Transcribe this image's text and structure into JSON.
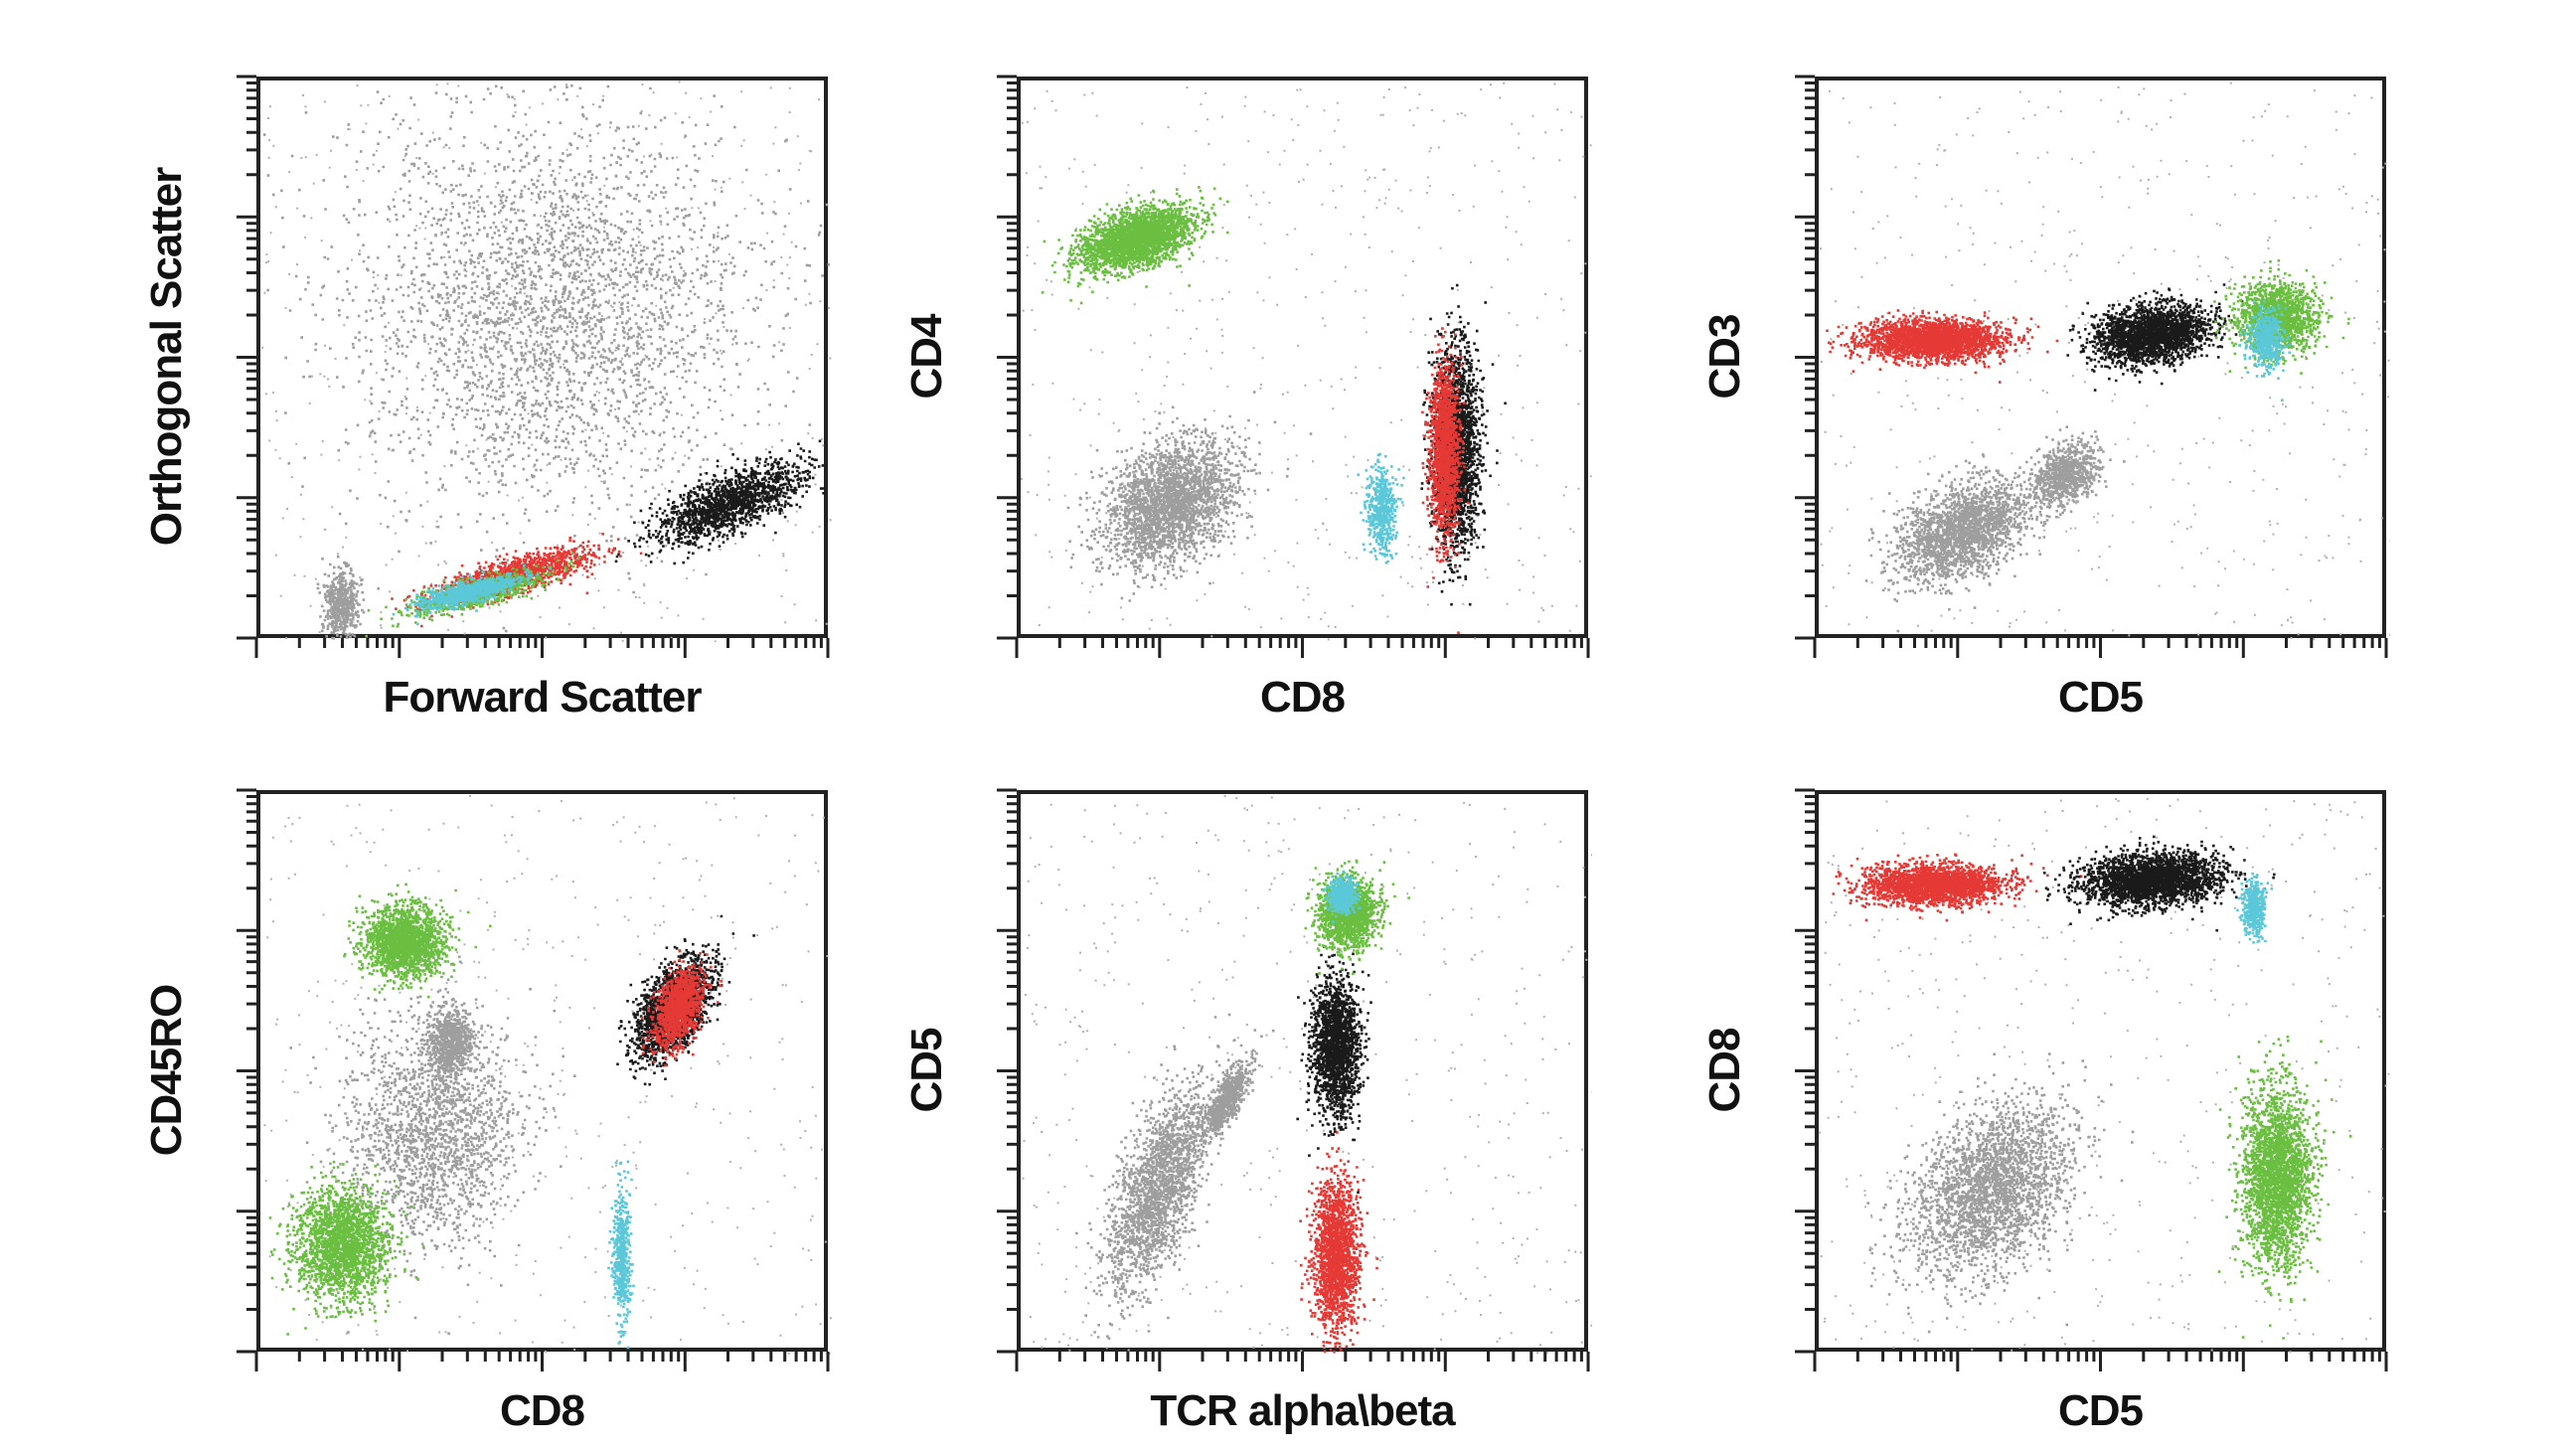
{
  "chart_data": [
    {
      "type": "scatter",
      "title": "",
      "xlabel": "Forward Scatter",
      "ylabel": "Orthogonal Scatter",
      "xlim": [
        0,
        1
      ],
      "ylim": [
        0,
        1
      ],
      "populations": [
        {
          "name": "gray",
          "color": "#9e9e9e",
          "center": [
            0.5,
            0.6
          ],
          "spread": [
            0.35,
            0.35
          ],
          "n": 3000,
          "angle": 0
        },
        {
          "name": "gray-low",
          "color": "#9e9e9e",
          "center": [
            0.14,
            0.07
          ],
          "spread": [
            0.03,
            0.06
          ],
          "n": 500,
          "angle": 0
        },
        {
          "name": "black",
          "color": "#1a1a1a",
          "center": [
            0.82,
            0.25
          ],
          "spread": [
            0.14,
            0.05
          ],
          "n": 1500,
          "angle": 0.35
        },
        {
          "name": "red",
          "color": "#e53935",
          "center": [
            0.44,
            0.12
          ],
          "spread": [
            0.14,
            0.03
          ],
          "n": 1200,
          "angle": 0.25
        },
        {
          "name": "green",
          "color": "#6abf40",
          "center": [
            0.38,
            0.09
          ],
          "spread": [
            0.12,
            0.025
          ],
          "n": 800,
          "angle": 0.25
        },
        {
          "name": "cyan",
          "color": "#5bc8d9",
          "center": [
            0.36,
            0.09
          ],
          "spread": [
            0.09,
            0.02
          ],
          "n": 700,
          "angle": 0.22
        }
      ]
    },
    {
      "type": "scatter",
      "title": "",
      "xlabel": "CD8",
      "ylabel": "CD4",
      "xlim": [
        0,
        1
      ],
      "ylim": [
        0,
        1
      ],
      "populations": [
        {
          "name": "gray",
          "color": "#9e9e9e",
          "center": [
            0.26,
            0.25
          ],
          "spread": [
            0.12,
            0.1
          ],
          "n": 2500,
          "angle": 0.3
        },
        {
          "name": "green",
          "color": "#6abf40",
          "center": [
            0.2,
            0.72
          ],
          "spread": [
            0.1,
            0.05
          ],
          "n": 2500,
          "angle": 0.25
        },
        {
          "name": "black",
          "color": "#1a1a1a",
          "center": [
            0.76,
            0.35
          ],
          "spread": [
            0.04,
            0.17
          ],
          "n": 2200,
          "angle": 0
        },
        {
          "name": "red",
          "color": "#e53935",
          "center": [
            0.74,
            0.34
          ],
          "spread": [
            0.025,
            0.15
          ],
          "n": 1500,
          "angle": 0
        },
        {
          "name": "cyan",
          "color": "#5bc8d9",
          "center": [
            0.63,
            0.24
          ],
          "spread": [
            0.025,
            0.08
          ],
          "n": 500,
          "angle": 0
        }
      ]
    },
    {
      "type": "scatter",
      "title": "",
      "xlabel": "CD5",
      "ylabel": "CD3",
      "xlim": [
        0,
        1
      ],
      "ylim": [
        0,
        1
      ],
      "populations": [
        {
          "name": "gray",
          "color": "#9e9e9e",
          "center": [
            0.25,
            0.2
          ],
          "spread": [
            0.12,
            0.08
          ],
          "n": 2000,
          "angle": 0.3
        },
        {
          "name": "gray-b",
          "color": "#9e9e9e",
          "center": [
            0.43,
            0.3
          ],
          "spread": [
            0.06,
            0.05
          ],
          "n": 800,
          "angle": 0.3
        },
        {
          "name": "red",
          "color": "#e53935",
          "center": [
            0.2,
            0.54
          ],
          "spread": [
            0.12,
            0.035
          ],
          "n": 2500,
          "angle": 0
        },
        {
          "name": "black",
          "color": "#1a1a1a",
          "center": [
            0.58,
            0.55
          ],
          "spread": [
            0.1,
            0.05
          ],
          "n": 2200,
          "angle": 0.1
        },
        {
          "name": "green",
          "color": "#6abf40",
          "center": [
            0.8,
            0.58
          ],
          "spread": [
            0.07,
            0.06
          ],
          "n": 1500,
          "angle": 0
        },
        {
          "name": "cyan",
          "color": "#5bc8d9",
          "center": [
            0.78,
            0.54
          ],
          "spread": [
            0.03,
            0.05
          ],
          "n": 500,
          "angle": 0
        }
      ]
    },
    {
      "type": "scatter",
      "title": "",
      "xlabel": "CD8",
      "ylabel": "CD45RO",
      "xlim": [
        0,
        1
      ],
      "ylim": [
        0,
        1
      ],
      "populations": [
        {
          "name": "gray",
          "color": "#9e9e9e",
          "center": [
            0.3,
            0.4
          ],
          "spread": [
            0.15,
            0.2
          ],
          "n": 1800,
          "angle": 0
        },
        {
          "name": "green-top",
          "color": "#6abf40",
          "center": [
            0.25,
            0.74
          ],
          "spread": [
            0.07,
            0.06
          ],
          "n": 1800,
          "angle": 0
        },
        {
          "name": "green-bottom",
          "color": "#6abf40",
          "center": [
            0.14,
            0.2
          ],
          "spread": [
            0.08,
            0.1
          ],
          "n": 2000,
          "angle": 0
        },
        {
          "name": "gray-mid",
          "color": "#9e9e9e",
          "center": [
            0.33,
            0.56
          ],
          "spread": [
            0.04,
            0.06
          ],
          "n": 700,
          "angle": 0
        },
        {
          "name": "black",
          "color": "#1a1a1a",
          "center": [
            0.72,
            0.62
          ],
          "spread": [
            0.08,
            0.07
          ],
          "n": 2000,
          "angle": 0.6
        },
        {
          "name": "red",
          "color": "#e53935",
          "center": [
            0.73,
            0.62
          ],
          "spread": [
            0.05,
            0.06
          ],
          "n": 1200,
          "angle": 0.6
        },
        {
          "name": "cyan",
          "color": "#5bc8d9",
          "center": [
            0.63,
            0.18
          ],
          "spread": [
            0.015,
            0.12
          ],
          "n": 500,
          "angle": 0
        }
      ]
    },
    {
      "type": "scatter",
      "title": "",
      "xlabel": "TCR alpha\\beta",
      "ylabel": "CD5",
      "xlim": [
        0,
        1
      ],
      "ylim": [
        0,
        1
      ],
      "populations": [
        {
          "name": "gray",
          "color": "#9e9e9e",
          "center": [
            0.24,
            0.3
          ],
          "spread": [
            0.14,
            0.14
          ],
          "n": 2000,
          "angle": 0.9
        },
        {
          "name": "gray-diag",
          "color": "#9e9e9e",
          "center": [
            0.36,
            0.46
          ],
          "spread": [
            0.06,
            0.04
          ],
          "n": 700,
          "angle": 0.9
        },
        {
          "name": "red",
          "color": "#e53935",
          "center": [
            0.55,
            0.18
          ],
          "spread": [
            0.04,
            0.13
          ],
          "n": 1800,
          "angle": 0
        },
        {
          "name": "black",
          "color": "#1a1a1a",
          "center": [
            0.55,
            0.55
          ],
          "spread": [
            0.04,
            0.12
          ],
          "n": 1800,
          "angle": 0
        },
        {
          "name": "green",
          "color": "#6abf40",
          "center": [
            0.57,
            0.79
          ],
          "spread": [
            0.05,
            0.06
          ],
          "n": 1500,
          "angle": 0
        },
        {
          "name": "cyan",
          "color": "#5bc8d9",
          "center": [
            0.56,
            0.82
          ],
          "spread": [
            0.025,
            0.03
          ],
          "n": 500,
          "angle": 0
        }
      ]
    },
    {
      "type": "scatter",
      "title": "",
      "xlabel": "CD5",
      "ylabel": "CD8",
      "xlim": [
        0,
        1
      ],
      "ylim": [
        0,
        1
      ],
      "populations": [
        {
          "name": "gray",
          "color": "#9e9e9e",
          "center": [
            0.3,
            0.3
          ],
          "spread": [
            0.15,
            0.14
          ],
          "n": 2500,
          "angle": 0.4
        },
        {
          "name": "red",
          "color": "#e53935",
          "center": [
            0.2,
            0.84
          ],
          "spread": [
            0.12,
            0.035
          ],
          "n": 2200,
          "angle": 0
        },
        {
          "name": "black",
          "color": "#1a1a1a",
          "center": [
            0.58,
            0.85
          ],
          "spread": [
            0.12,
            0.045
          ],
          "n": 2500,
          "angle": 0.05
        },
        {
          "name": "cyan",
          "color": "#5bc8d9",
          "center": [
            0.76,
            0.8
          ],
          "spread": [
            0.02,
            0.05
          ],
          "n": 400,
          "angle": 0
        },
        {
          "name": "green",
          "color": "#6abf40",
          "center": [
            0.8,
            0.32
          ],
          "spread": [
            0.06,
            0.16
          ],
          "n": 2500,
          "angle": 0
        }
      ]
    }
  ]
}
